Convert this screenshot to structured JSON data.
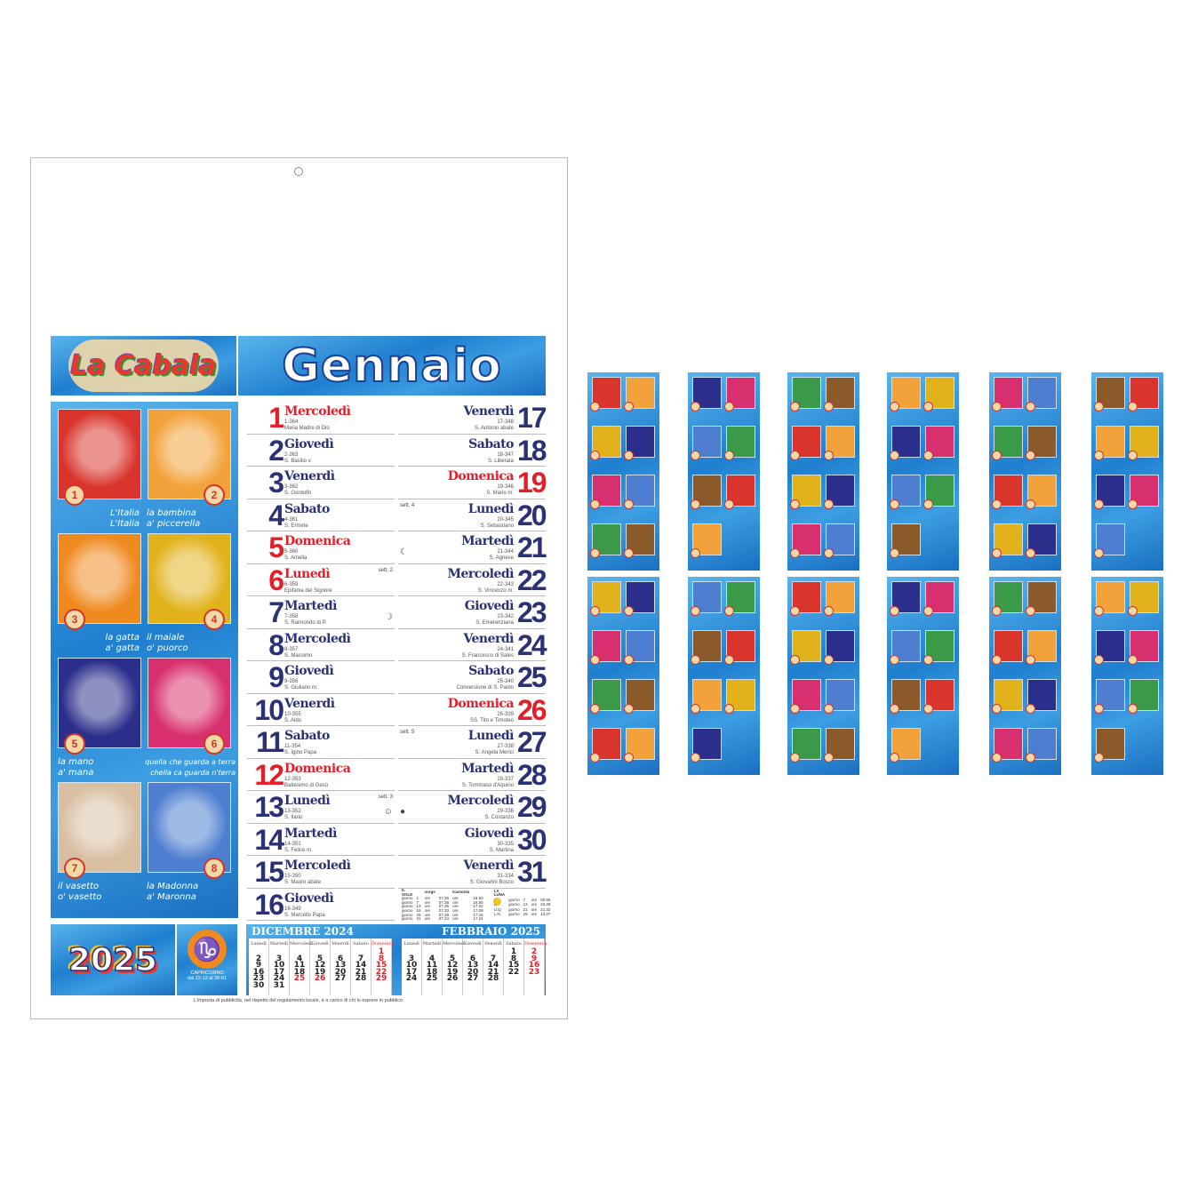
{
  "header": {
    "logo": "La Cabala",
    "month": "Gennaio"
  },
  "colors": {
    "navy": "#2b3175",
    "red": "#e3202a",
    "blue": "#1f7fcf"
  },
  "pictures": [
    {
      "num": "1",
      "caption": [
        "L'Italia",
        "L'Italia"
      ],
      "bg": "#d9352d"
    },
    {
      "num": "2",
      "caption": [
        "la bambina",
        "a' piccerella"
      ],
      "bg": "#f2a23a"
    },
    {
      "num": "3",
      "caption": [
        "la gatta",
        "a' gatta"
      ],
      "bg": "#ef8a1f"
    },
    {
      "num": "4",
      "caption": [
        "il maiale",
        "o' puorco"
      ],
      "bg": "#e2b21c"
    },
    {
      "num": "5",
      "caption": [
        "la mano",
        "a' mana"
      ],
      "bg": "#2b2e8a"
    },
    {
      "num": "6",
      "caption": [
        "quella che guarda a terra",
        "chella ca guarda n'terra"
      ],
      "bg": "#d8306e"
    },
    {
      "num": "7",
      "caption": [
        "il vasetto",
        "o' vasetto"
      ],
      "bg": "#d9bfa2"
    },
    {
      "num": "8",
      "caption": [
        "la Madonna",
        "a' Maronna"
      ],
      "bg": "#4d7ed0"
    }
  ],
  "days": [
    {
      "n": "1",
      "wd": "Mercoledì",
      "c": "1-364",
      "s": "Maria Madre di Dio",
      "red": true
    },
    {
      "n": "2",
      "wd": "Giovedì",
      "c": "2-363",
      "s": "S. Basilio v."
    },
    {
      "n": "3",
      "wd": "Venerdì",
      "c": "3-362",
      "s": "S. Gordolfo"
    },
    {
      "n": "4",
      "wd": "Sabato",
      "c": "4-361",
      "s": "S. Ermete"
    },
    {
      "n": "5",
      "wd": "Domenica",
      "c": "5-360",
      "s": "S. Amelia",
      "red": true
    },
    {
      "n": "6",
      "wd": "Lunedì",
      "c": "6-359",
      "s": "Epifania del Signore",
      "red": true,
      "note": "sett. 2"
    },
    {
      "n": "7",
      "wd": "Martedì",
      "c": "7-358",
      "s": "S. Raimondo di P.",
      "moon": "☽"
    },
    {
      "n": "8",
      "wd": "Mercoledì",
      "c": "8-357",
      "s": "S. Massimo"
    },
    {
      "n": "9",
      "wd": "Giovedì",
      "c": "9-356",
      "s": "S. Giuliano m."
    },
    {
      "n": "10",
      "wd": "Venerdì",
      "c": "10-355",
      "s": "S. Aldo"
    },
    {
      "n": "11",
      "wd": "Sabato",
      "c": "11-354",
      "s": "S. Igino Papa"
    },
    {
      "n": "12",
      "wd": "Domenica",
      "c": "12-353",
      "s": "Battesimo di Gesù",
      "red": true
    },
    {
      "n": "13",
      "wd": "Lunedì",
      "c": "13-352",
      "s": "S. Ilario",
      "note": "sett. 3",
      "moon": "☺"
    },
    {
      "n": "14",
      "wd": "Martedì",
      "c": "14-351",
      "s": "S. Felice m."
    },
    {
      "n": "15",
      "wd": "Mercoledì",
      "c": "15-350",
      "s": "S. Mauro abate"
    },
    {
      "n": "16",
      "wd": "Giovedì",
      "c": "16-349",
      "s": "S. Marcello Papa"
    },
    {
      "n": "17",
      "wd": "Venerdì",
      "c": "17-348",
      "s": "S. Antonio abate"
    },
    {
      "n": "18",
      "wd": "Sabato",
      "c": "18-347",
      "s": "S. Liberata"
    },
    {
      "n": "19",
      "wd": "Domenica",
      "c": "19-346",
      "s": "S. Mario m.",
      "red": true
    },
    {
      "n": "20",
      "wd": "Lunedì",
      "c": "20-345",
      "s": "S. Sebastiano",
      "note": "sett. 4"
    },
    {
      "n": "21",
      "wd": "Martedì",
      "c": "21-344",
      "s": "S. Agnese",
      "moon": "☾"
    },
    {
      "n": "22",
      "wd": "Mercoledì",
      "c": "22-343",
      "s": "S. Vincenzo m."
    },
    {
      "n": "23",
      "wd": "Giovedì",
      "c": "23-342",
      "s": "S. Emerenziana"
    },
    {
      "n": "24",
      "wd": "Venerdì",
      "c": "24-341",
      "s": "S. Francesco di Sales"
    },
    {
      "n": "25",
      "wd": "Sabato",
      "c": "25-340",
      "s": "Conversione di S. Paolo"
    },
    {
      "n": "26",
      "wd": "Domenica",
      "c": "26-339",
      "s": "SS. Tito e Timoteo",
      "red": true
    },
    {
      "n": "27",
      "wd": "Lunedì",
      "c": "27-338",
      "s": "S. Angela Merici",
      "note": "sett. 5"
    },
    {
      "n": "28",
      "wd": "Martedì",
      "c": "28-337",
      "s": "S. Tommaso d'Aquino"
    },
    {
      "n": "29",
      "wd": "Mercoledì",
      "c": "29-336",
      "s": "S. Costanzo",
      "moon": "●"
    },
    {
      "n": "30",
      "wd": "Giovedì",
      "c": "30-335",
      "s": "S. Martina"
    },
    {
      "n": "31",
      "wd": "Venerdì",
      "c": "31-334",
      "s": "S. Giovanni Bosco"
    }
  ],
  "sun": {
    "title": "IL SOLE",
    "rise": "sorge",
    "set": "tramonta",
    "rows": [
      [
        "giorno",
        "1",
        "ore",
        "07.38",
        "ore",
        "16.50"
      ],
      [
        "giorno",
        "7",
        "ore",
        "07.38",
        "ore",
        "16.55"
      ],
      [
        "giorno",
        "13",
        "ore",
        "07.36",
        "ore",
        "17.02"
      ],
      [
        "giorno",
        "19",
        "ore",
        "07.33",
        "ore",
        "17.09"
      ],
      [
        "giorno",
        "25",
        "ore",
        "07.28",
        "ore",
        "17.16"
      ],
      [
        "giorno",
        "31",
        "ore",
        "07.23",
        "ore",
        "17.24"
      ]
    ]
  },
  "moon": {
    "title": "LA LUNA",
    "rows": [
      [
        "P.Q.",
        "giorno",
        "7",
        "ore",
        "00.56"
      ],
      [
        "L.P.",
        "giorno",
        "13",
        "ore",
        "23.28"
      ],
      [
        "U.Q.",
        "giorno",
        "21",
        "ore",
        "21.32"
      ],
      [
        "L.N.",
        "giorno",
        "29",
        "ore",
        "13.37"
      ]
    ]
  },
  "year": "2025",
  "zodiac": {
    "name": "CAPRICORNO",
    "range": "dal 22-12 al 20-01",
    "icon": "♑"
  },
  "weekdays": [
    "Lunedì",
    "Martedì",
    "Mercoledì",
    "Giovedì",
    "Venerdì",
    "Sabato",
    "Domenica"
  ],
  "mini": [
    {
      "title": "DICEMBRE 2024",
      "cols": [
        [
          "2",
          "9",
          "16",
          "23",
          "30"
        ],
        [
          "3",
          "10",
          "17",
          "24",
          "31"
        ],
        [
          "4",
          "11",
          "18",
          "25"
        ],
        [
          "5",
          "12",
          "19",
          "26"
        ],
        [
          "6",
          "13",
          "20",
          "27"
        ],
        [
          "7",
          "14",
          "21",
          "28"
        ],
        [
          "1",
          "8",
          "15",
          "22",
          "29"
        ]
      ],
      "red": [
        "1",
        "8",
        "15",
        "22",
        "29",
        "25",
        "26"
      ],
      "lead": [
        1,
        1,
        1,
        1,
        1,
        1,
        0
      ]
    },
    {
      "title": "FEBBRAIO 2025",
      "cols": [
        [
          "3",
          "10",
          "17",
          "24"
        ],
        [
          "4",
          "11",
          "18",
          "25"
        ],
        [
          "5",
          "12",
          "19",
          "26"
        ],
        [
          "6",
          "13",
          "20",
          "27"
        ],
        [
          "7",
          "14",
          "21",
          "28"
        ],
        [
          "1",
          "8",
          "15",
          "22"
        ],
        [
          "2",
          "9",
          "16",
          "23"
        ]
      ],
      "red": [
        "2",
        "9",
        "16",
        "23"
      ],
      "lead": [
        1,
        1,
        1,
        1,
        1,
        0,
        0
      ]
    }
  ],
  "footer": "L'imposta di pubblicità, nel rispetto del regolamento locale, è a carico di chi lo espone in pubblico",
  "thumbnails": {
    "tiles_per_month": [
      8,
      7,
      8,
      7,
      8,
      7,
      8,
      7,
      8,
      7,
      8,
      7
    ]
  }
}
